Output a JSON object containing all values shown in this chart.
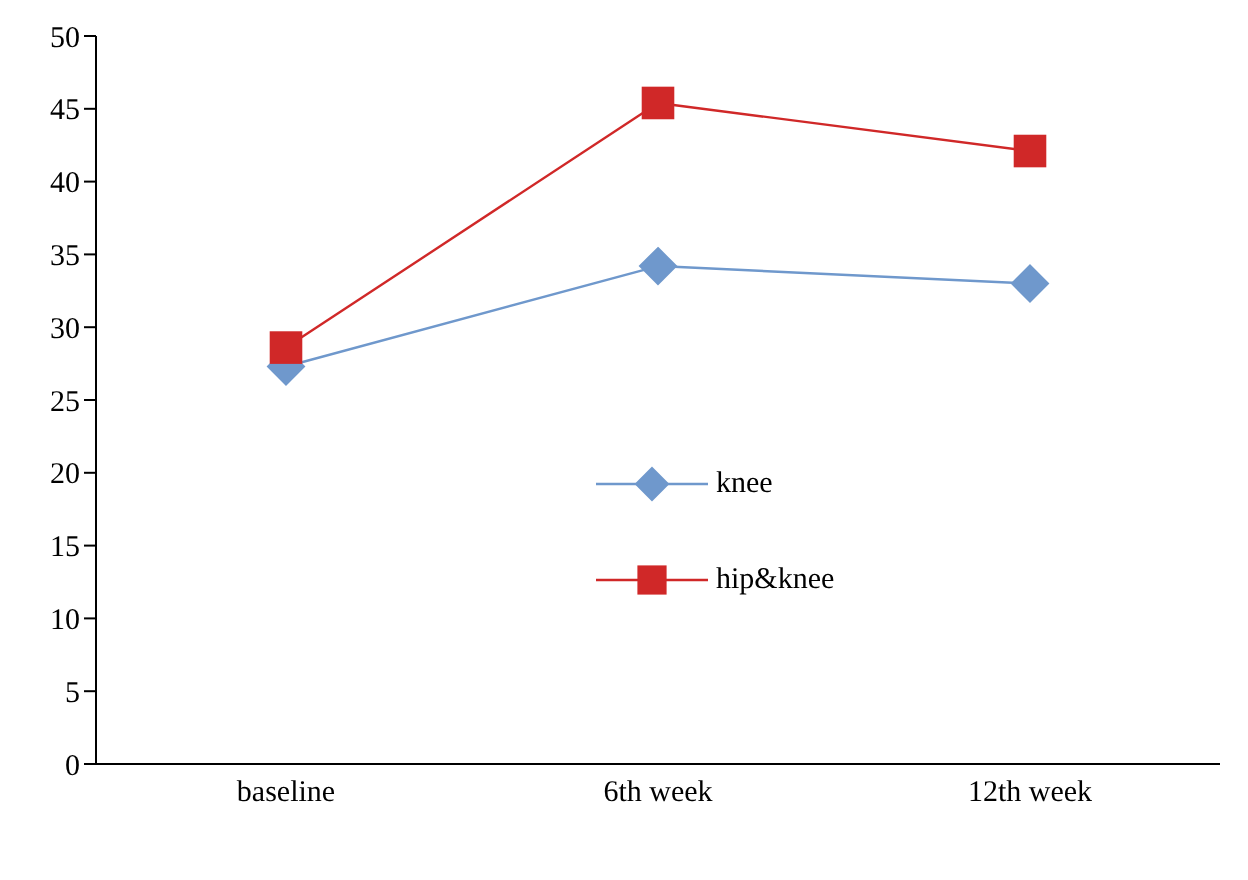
{
  "chart_data": {
    "type": "line",
    "categories": [
      "baseline",
      "6th week",
      "12th week"
    ],
    "series": [
      {
        "name": "knee",
        "color": "#6f98cc",
        "marker": "diamond",
        "values": [
          27.3,
          34.2,
          33.0
        ]
      },
      {
        "name": "hip&knee",
        "color": "#d02828",
        "marker": "square",
        "values": [
          28.6,
          45.4,
          42.1
        ]
      }
    ],
    "ylim": [
      0,
      50
    ],
    "yticks": [
      0,
      5,
      10,
      15,
      20,
      25,
      30,
      35,
      40,
      45,
      50
    ],
    "grid": false,
    "legend": "center"
  }
}
